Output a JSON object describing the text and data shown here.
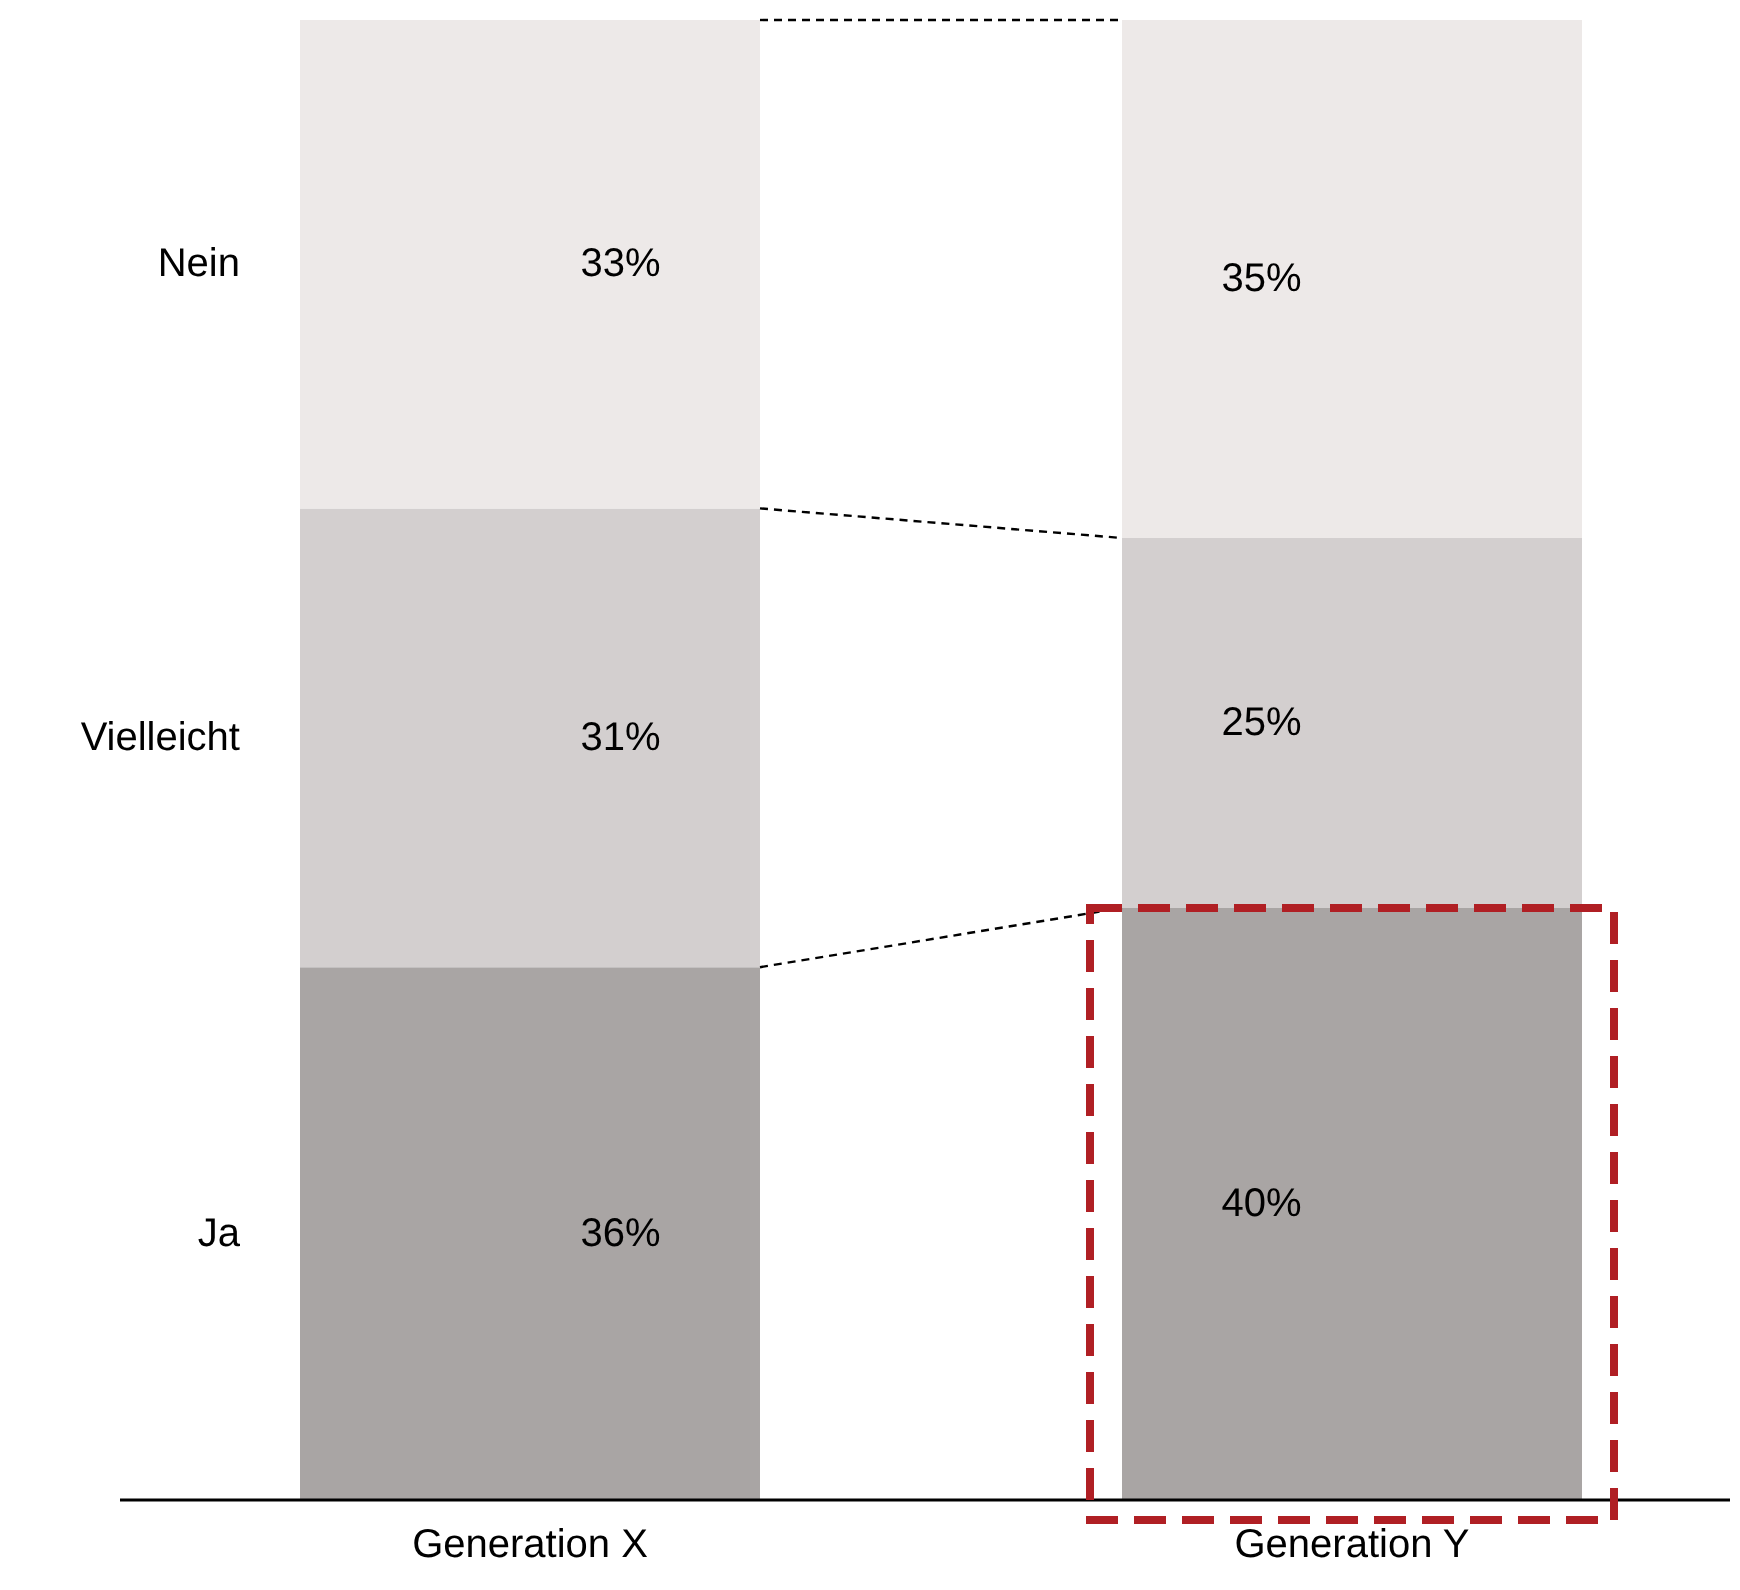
{
  "chart_data": {
    "type": "bar",
    "stacked": true,
    "categories": [
      "Generation X",
      "Generation Y"
    ],
    "series": [
      {
        "name": "Ja",
        "color": "#a9a5a4",
        "values": [
          36,
          40
        ],
        "value_labels": [
          "36%",
          "40%"
        ]
      },
      {
        "name": "Vielleicht",
        "color": "#d3cfcf",
        "values": [
          31,
          25
        ],
        "value_labels": [
          "31%",
          "25%"
        ]
      },
      {
        "name": "Nein",
        "color": "#ede9e8",
        "values": [
          33,
          35
        ],
        "value_labels": [
          "33%",
          "35%"
        ]
      }
    ]
  }
}
